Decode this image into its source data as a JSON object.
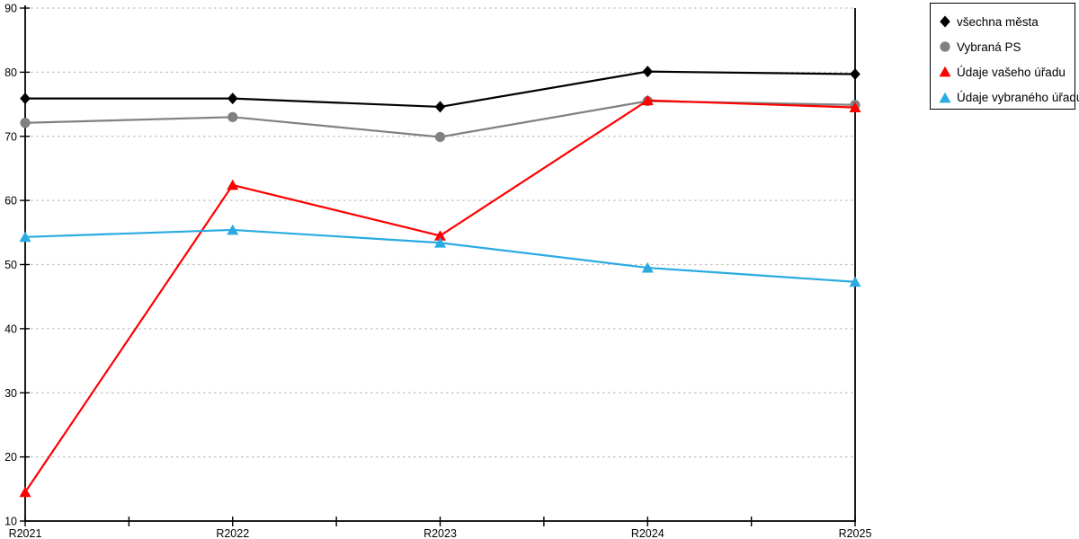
{
  "chart_data": {
    "type": "line",
    "title": "",
    "xlabel": "",
    "ylabel": "",
    "categories": [
      "R2021",
      "R2022",
      "R2023",
      "R2024",
      "R2025"
    ],
    "series": [
      {
        "name": "všechna města",
        "marker": "diamond",
        "color": "#000000",
        "values": [
          75.9,
          75.9,
          74.6,
          80.1,
          79.7
        ]
      },
      {
        "name": "Vybraná PS",
        "marker": "circle",
        "color": "#808080",
        "values": [
          72.1,
          73.0,
          69.9,
          75.5,
          74.9
        ]
      },
      {
        "name": "Údaje vašeho úřadu",
        "marker": "triangle",
        "color": "#ff0000",
        "values": [
          14.5,
          62.4,
          54.5,
          75.6,
          74.5
        ]
      },
      {
        "name": "Údaje vybraného úřadu",
        "marker": "triangle",
        "color": "#29abe2",
        "values": [
          54.3,
          55.4,
          53.4,
          49.5,
          47.3
        ]
      }
    ],
    "ylim": [
      10,
      90
    ],
    "yticks": [
      10,
      20,
      30,
      40,
      50,
      60,
      70,
      80,
      90
    ],
    "grid": "horizontal dotted gridlines at every y tick",
    "legend_position": "top-right",
    "background_color": "#ffffff",
    "gridline_color": "#c0c0c0",
    "axis_color": "#000000"
  }
}
